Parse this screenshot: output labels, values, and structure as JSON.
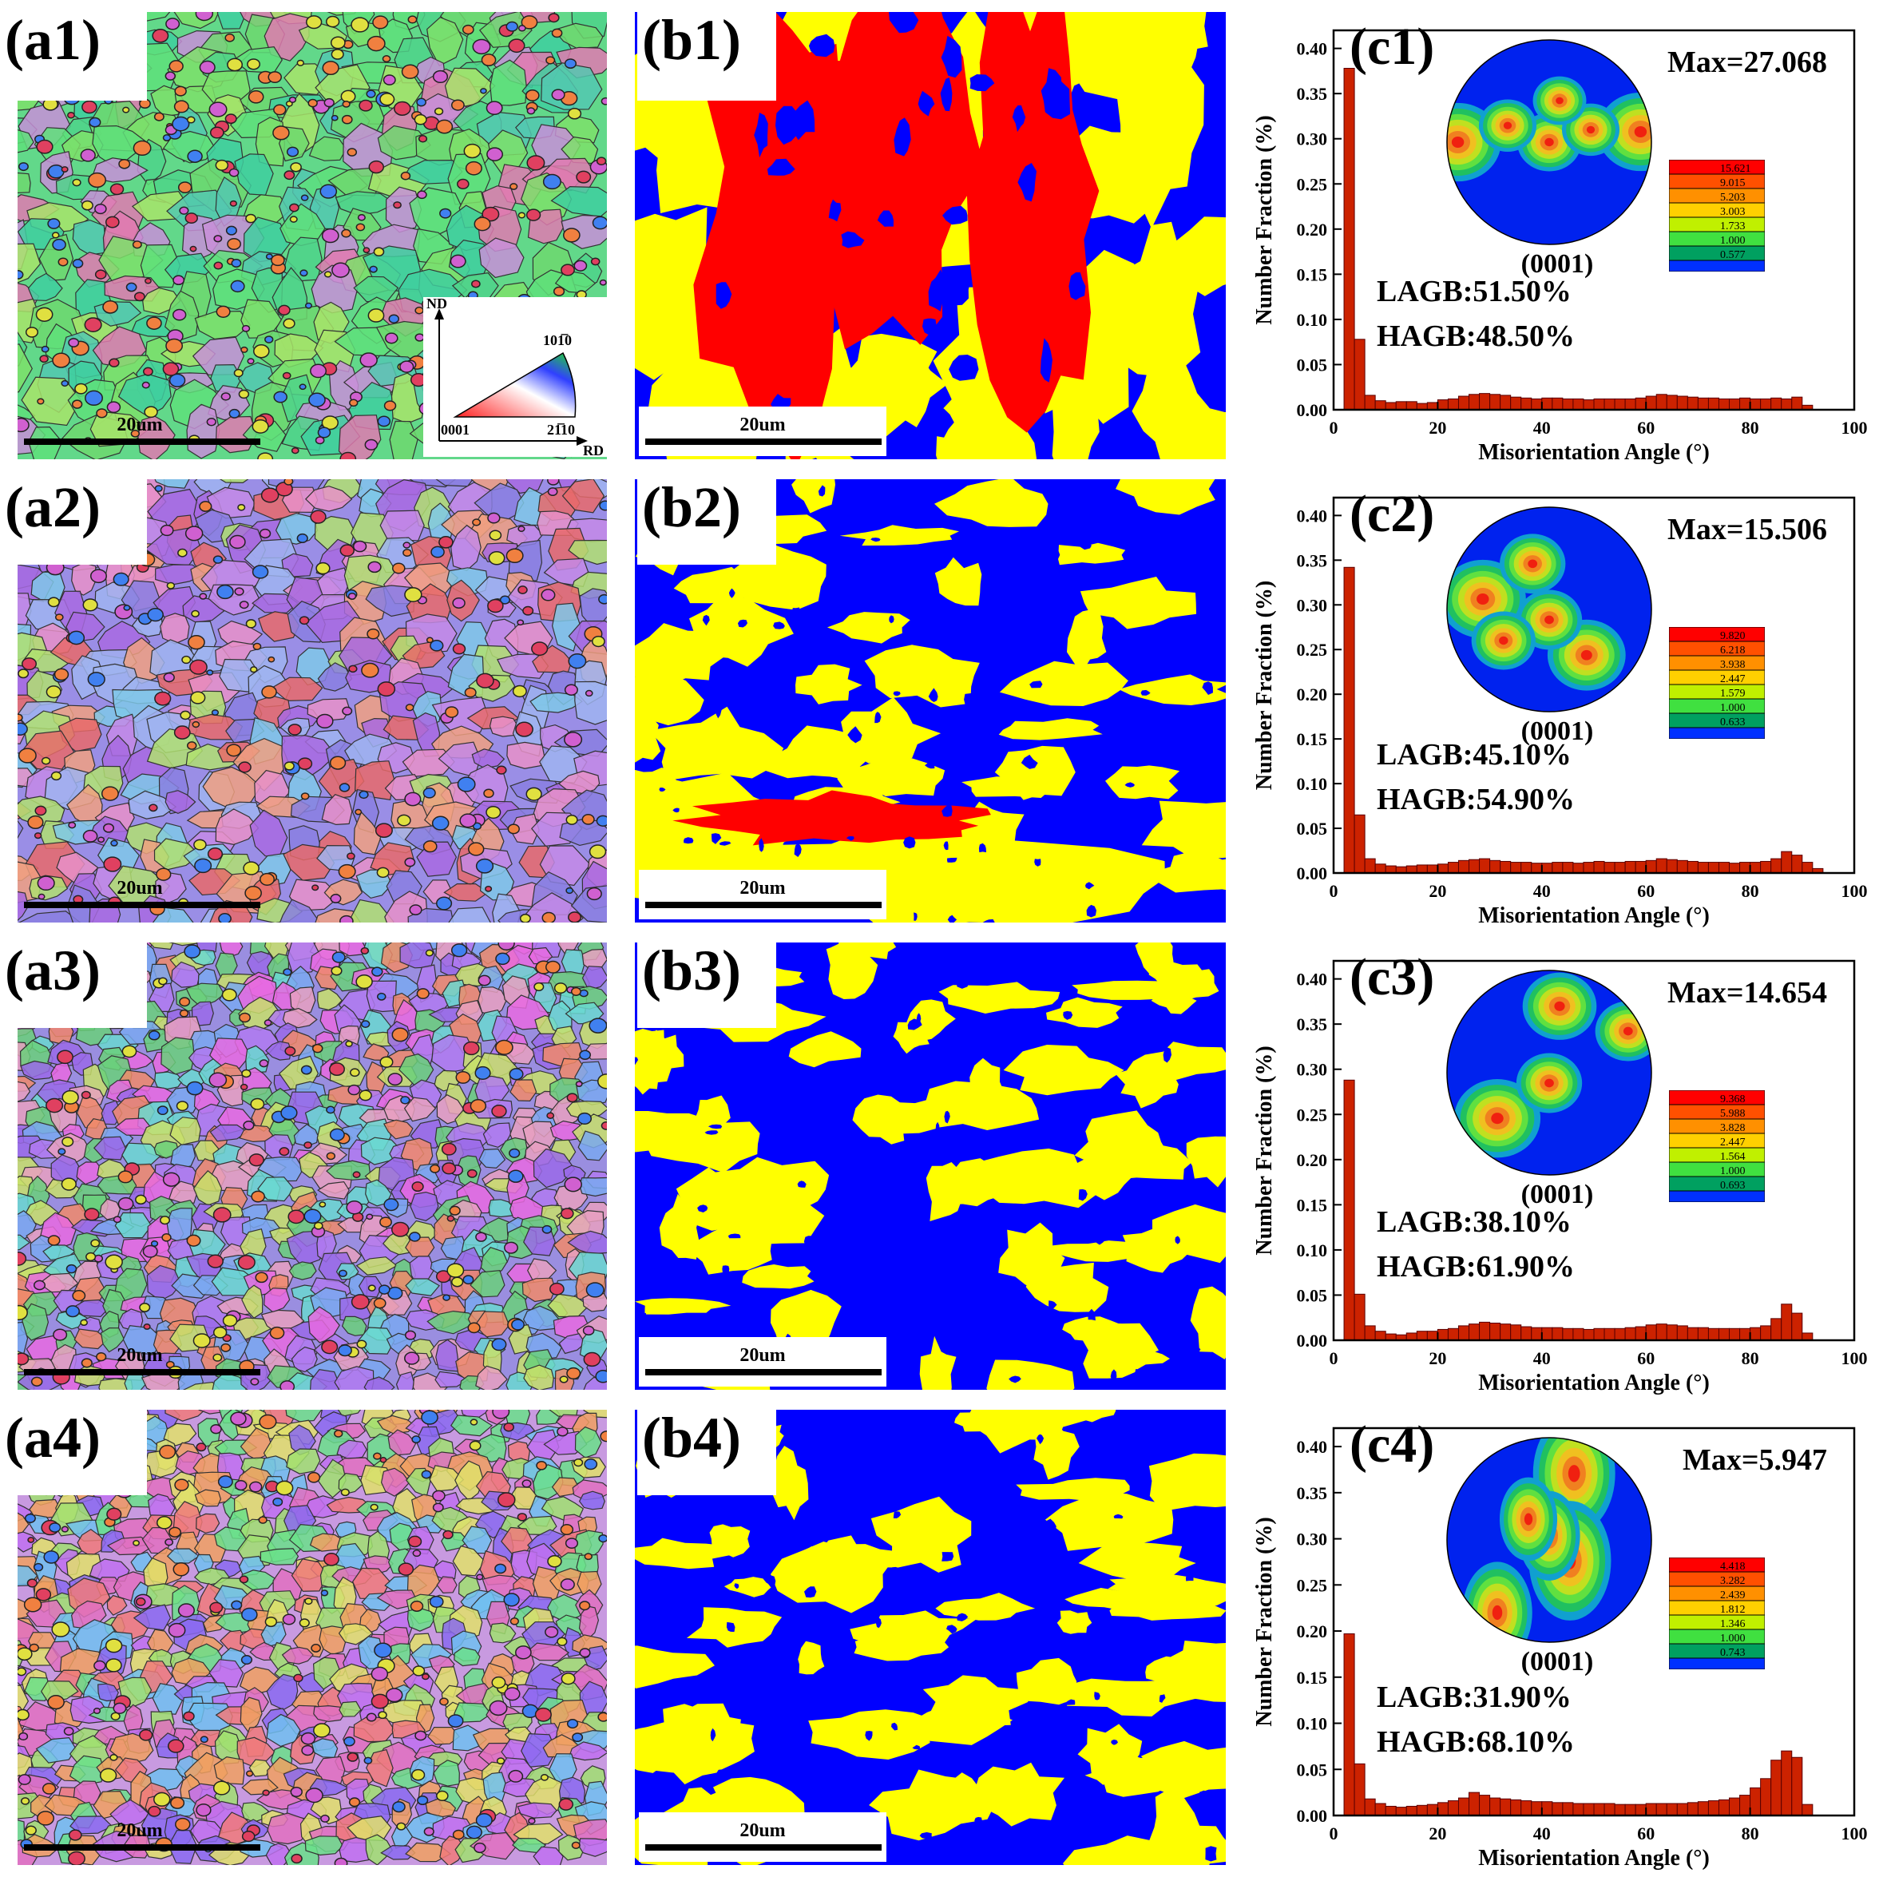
{
  "rows": [
    {
      "a_label": "(a1)",
      "b_label": "(b1)",
      "c_label": "(c1)",
      "scale_text_a": "20um",
      "scale_text_b": "20um",
      "pole_label": "(0001)",
      "max_text": "Max=27.068",
      "legend": [
        "15.621",
        "9.015",
        "5.203",
        "3.003",
        "1.733",
        "1.000",
        "0.577"
      ],
      "lagb": "LAGB:51.50%",
      "hagb": "HAGB:48.50%",
      "chart_data": {
        "type": "bar",
        "xlabel": "Misorientation Angle (°)",
        "ylabel": "Number Fraction (%)",
        "xlim": [
          0,
          100
        ],
        "ylim": [
          0,
          0.42
        ],
        "xticks": [
          "0",
          "20",
          "40",
          "60",
          "80",
          "100"
        ],
        "yticks": [
          "0.00",
          "0.05",
          "0.10",
          "0.15",
          "0.20",
          "0.25",
          "0.30",
          "0.35",
          "0.40"
        ],
        "bin_width": 2,
        "x": [
          3,
          5,
          7,
          9,
          11,
          13,
          15,
          17,
          19,
          21,
          23,
          25,
          27,
          29,
          31,
          33,
          35,
          37,
          39,
          41,
          43,
          45,
          47,
          49,
          51,
          53,
          55,
          57,
          59,
          61,
          63,
          65,
          67,
          69,
          71,
          73,
          75,
          77,
          79,
          81,
          83,
          85,
          87,
          89,
          91
        ],
        "values": [
          0.378,
          0.078,
          0.016,
          0.01,
          0.008,
          0.009,
          0.009,
          0.007,
          0.008,
          0.011,
          0.012,
          0.015,
          0.017,
          0.018,
          0.017,
          0.016,
          0.014,
          0.013,
          0.012,
          0.013,
          0.013,
          0.012,
          0.012,
          0.011,
          0.012,
          0.012,
          0.012,
          0.012,
          0.013,
          0.015,
          0.017,
          0.016,
          0.015,
          0.014,
          0.013,
          0.013,
          0.012,
          0.012,
          0.013,
          0.012,
          0.012,
          0.013,
          0.012,
          0.014,
          0.005
        ]
      }
    },
    {
      "a_label": "(a2)",
      "b_label": "(b2)",
      "c_label": "(c2)",
      "scale_text_a": "20um",
      "scale_text_b": "20um",
      "pole_label": "(0001)",
      "max_text": "Max=15.506",
      "legend": [
        "9.820",
        "6.218",
        "3.938",
        "2.447",
        "1.579",
        "1.000",
        "0.633"
      ],
      "lagb": "LAGB:45.10%",
      "hagb": "HAGB:54.90%",
      "chart_data": {
        "type": "bar",
        "xlabel": "Misorientation Angle (°)",
        "ylabel": "Number Fraction (%)",
        "xlim": [
          0,
          100
        ],
        "ylim": [
          0,
          0.42
        ],
        "xticks": [
          "0",
          "20",
          "40",
          "60",
          "80",
          "100"
        ],
        "yticks": [
          "0.00",
          "0.05",
          "0.10",
          "0.15",
          "0.20",
          "0.25",
          "0.30",
          "0.35",
          "0.40"
        ],
        "bin_width": 2,
        "x": [
          3,
          5,
          7,
          9,
          11,
          13,
          15,
          17,
          19,
          21,
          23,
          25,
          27,
          29,
          31,
          33,
          35,
          37,
          39,
          41,
          43,
          45,
          47,
          49,
          51,
          53,
          55,
          57,
          59,
          61,
          63,
          65,
          67,
          69,
          71,
          73,
          75,
          77,
          79,
          81,
          83,
          85,
          87,
          89,
          91,
          93
        ],
        "values": [
          0.342,
          0.065,
          0.016,
          0.01,
          0.008,
          0.007,
          0.008,
          0.009,
          0.009,
          0.01,
          0.012,
          0.014,
          0.015,
          0.016,
          0.014,
          0.013,
          0.012,
          0.012,
          0.011,
          0.011,
          0.012,
          0.012,
          0.011,
          0.012,
          0.013,
          0.012,
          0.012,
          0.013,
          0.013,
          0.014,
          0.016,
          0.015,
          0.014,
          0.013,
          0.012,
          0.012,
          0.012,
          0.011,
          0.012,
          0.012,
          0.013,
          0.016,
          0.024,
          0.02,
          0.012,
          0.005
        ]
      }
    },
    {
      "a_label": "(a3)",
      "b_label": "(b3)",
      "c_label": "(c3)",
      "scale_text_a": "20um",
      "scale_text_b": "20um",
      "pole_label": "(0001)",
      "max_text": "Max=14.654",
      "legend": [
        "9.368",
        "5.988",
        "3.828",
        "2.447",
        "1.564",
        "1.000",
        "0.693"
      ],
      "lagb": "LAGB:38.10%",
      "hagb": "HAGB:61.90%",
      "chart_data": {
        "type": "bar",
        "xlabel": "Misorientation Angle (°)",
        "ylabel": "Number Fraction (%)",
        "xlim": [
          0,
          100
        ],
        "ylim": [
          0,
          0.42
        ],
        "xticks": [
          "0",
          "20",
          "40",
          "60",
          "80",
          "100"
        ],
        "yticks": [
          "0.00",
          "0.05",
          "0.10",
          "0.15",
          "0.20",
          "0.25",
          "0.30",
          "0.35",
          "0.40"
        ],
        "bin_width": 2,
        "x": [
          3,
          5,
          7,
          9,
          11,
          13,
          15,
          17,
          19,
          21,
          23,
          25,
          27,
          29,
          31,
          33,
          35,
          37,
          39,
          41,
          43,
          45,
          47,
          49,
          51,
          53,
          55,
          57,
          59,
          61,
          63,
          65,
          67,
          69,
          71,
          73,
          75,
          77,
          79,
          81,
          83,
          85,
          87,
          89,
          91
        ],
        "values": [
          0.288,
          0.051,
          0.016,
          0.01,
          0.007,
          0.006,
          0.008,
          0.01,
          0.01,
          0.012,
          0.013,
          0.016,
          0.018,
          0.02,
          0.019,
          0.018,
          0.017,
          0.015,
          0.014,
          0.014,
          0.014,
          0.013,
          0.013,
          0.012,
          0.013,
          0.013,
          0.013,
          0.014,
          0.015,
          0.017,
          0.018,
          0.017,
          0.016,
          0.014,
          0.014,
          0.013,
          0.013,
          0.013,
          0.013,
          0.014,
          0.016,
          0.024,
          0.04,
          0.03,
          0.008
        ]
      }
    },
    {
      "a_label": "(a4)",
      "b_label": "(b4)",
      "c_label": "(c4)",
      "scale_text_a": "20um",
      "scale_text_b": "20um",
      "pole_label": "(0001)",
      "max_text": "Max=5.947",
      "legend": [
        "4.418",
        "3.282",
        "2.439",
        "1.812",
        "1.346",
        "1.000",
        "0.743"
      ],
      "lagb": "LAGB:31.90%",
      "hagb": "HAGB:68.10%",
      "chart_data": {
        "type": "bar",
        "xlabel": "Misorientation Angle (°)",
        "ylabel": "Number Fraction (%)",
        "xlim": [
          0,
          100
        ],
        "ylim": [
          0,
          0.42
        ],
        "xticks": [
          "0",
          "20",
          "40",
          "60",
          "80",
          "100"
        ],
        "yticks": [
          "0.00",
          "0.05",
          "0.10",
          "0.15",
          "0.20",
          "0.25",
          "0.30",
          "0.35",
          "0.40"
        ],
        "bin_width": 2,
        "x": [
          3,
          5,
          7,
          9,
          11,
          13,
          15,
          17,
          19,
          21,
          23,
          25,
          27,
          29,
          31,
          33,
          35,
          37,
          39,
          41,
          43,
          45,
          47,
          49,
          51,
          53,
          55,
          57,
          59,
          61,
          63,
          65,
          67,
          69,
          71,
          73,
          75,
          77,
          79,
          81,
          83,
          85,
          87,
          89,
          91
        ],
        "values": [
          0.197,
          0.056,
          0.018,
          0.013,
          0.01,
          0.009,
          0.01,
          0.011,
          0.012,
          0.014,
          0.016,
          0.019,
          0.025,
          0.022,
          0.019,
          0.018,
          0.017,
          0.016,
          0.015,
          0.015,
          0.014,
          0.014,
          0.013,
          0.013,
          0.013,
          0.013,
          0.012,
          0.012,
          0.012,
          0.013,
          0.013,
          0.013,
          0.013,
          0.014,
          0.015,
          0.016,
          0.017,
          0.019,
          0.022,
          0.03,
          0.04,
          0.06,
          0.07,
          0.063,
          0.012
        ]
      }
    }
  ],
  "ipf_legend": {
    "axis_nd": "ND",
    "axis_rd": "RD",
    "corner_0001": "0001",
    "corner_1010": "101̅0",
    "corner_2110": "21̅10"
  },
  "colors": {
    "bar_fill": "#cc2200",
    "phase_red": "#ff0000",
    "phase_yellow": "#ffff00",
    "phase_blue": "#0000ff",
    "pole_background": "#0022ee"
  }
}
